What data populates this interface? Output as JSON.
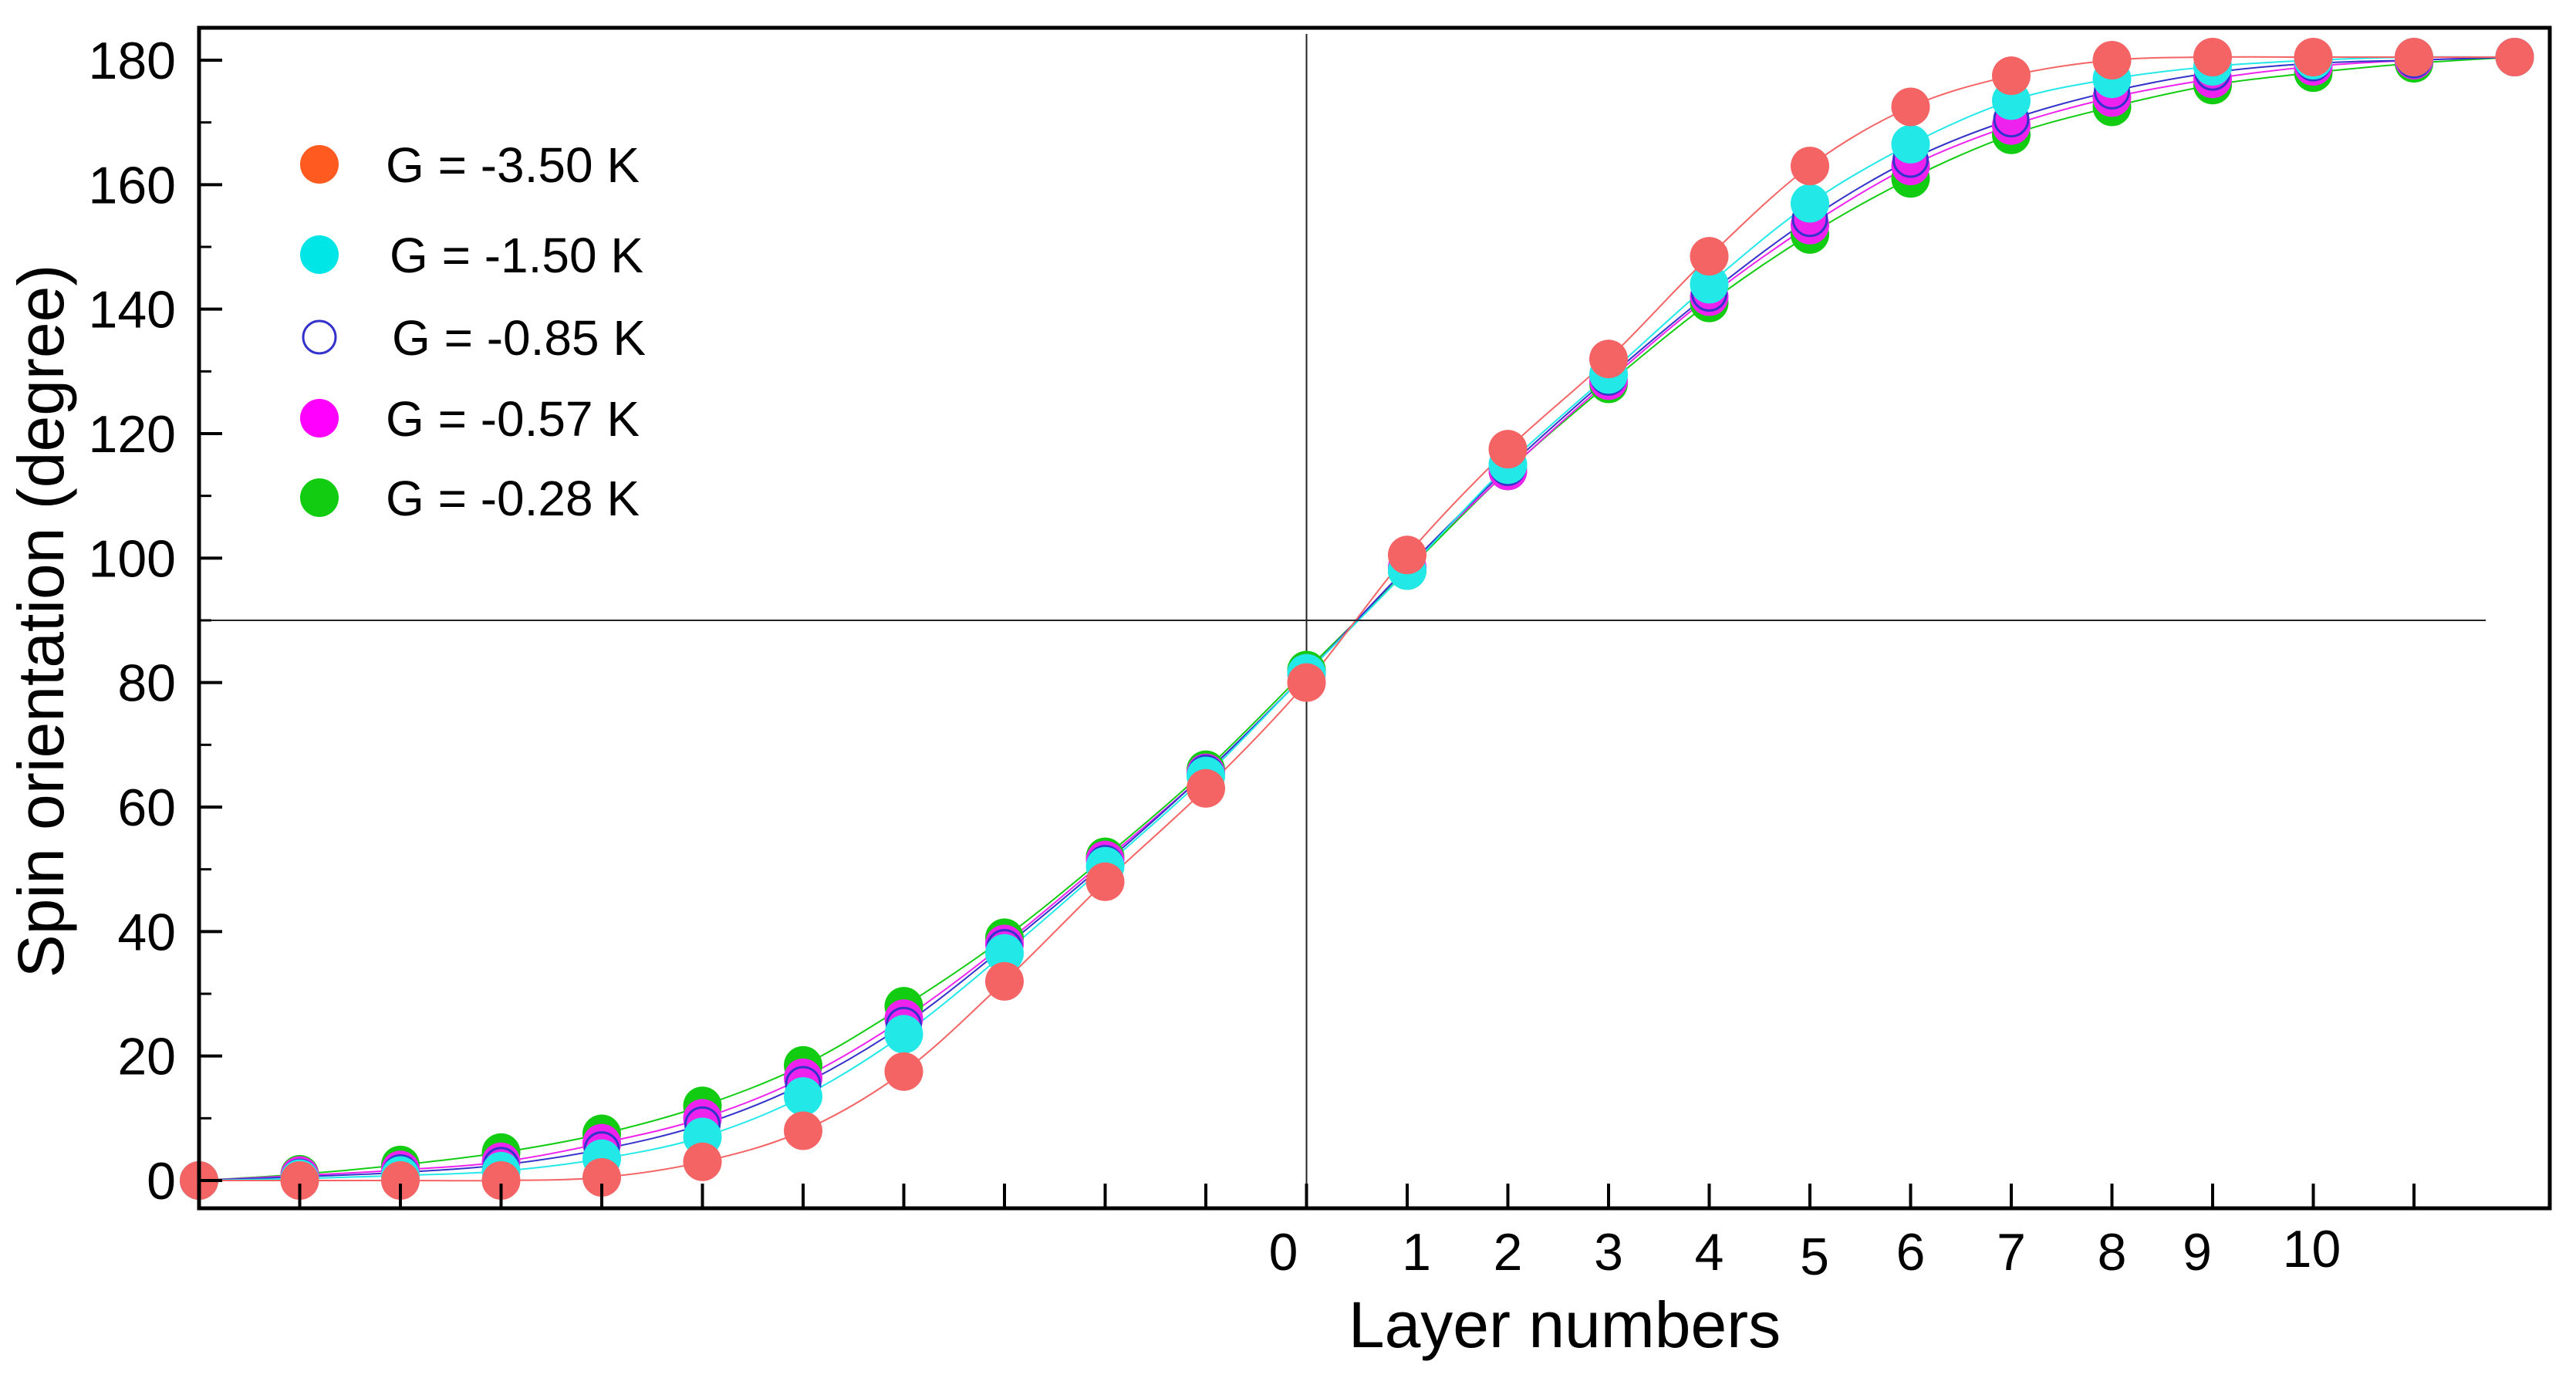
{
  "chart_data": {
    "type": "scatter",
    "title": "",
    "xlabel": "Layer numbers",
    "ylabel": "Spin orientation (degree)",
    "ylim": [
      0,
      180
    ],
    "grid": false,
    "legend_position": "top-left",
    "x": [
      -11,
      -10,
      -9,
      -8,
      -7,
      -6,
      -5,
      -4,
      -3,
      -2,
      -1,
      0,
      1,
      2,
      3,
      4,
      5,
      6,
      7,
      8,
      9,
      10,
      11,
      12
    ],
    "x_tick_labels": [
      "0",
      "1",
      "2",
      "3",
      "4",
      "5",
      "6",
      "7",
      "8",
      "9",
      "10"
    ],
    "y_tick_labels": [
      "0",
      "20",
      "40",
      "60",
      "80",
      "100",
      "120",
      "140",
      "160",
      "180"
    ],
    "series": [
      {
        "name": "G = -3.50 K",
        "marker": "filled",
        "color": "#ff5a1f",
        "draw_color": "#f46464",
        "values": [
          0,
          0,
          0,
          0,
          0.5,
          3,
          8,
          17.5,
          32,
          48,
          63,
          80,
          100.5,
          117.5,
          132,
          148.5,
          163,
          172.5,
          177.5,
          180,
          180.5,
          180.5,
          180.5,
          180.5
        ]
      },
      {
        "name": "G = -1.50 K",
        "marker": "filled",
        "color": "#00e6e6",
        "draw_color": "#22e8e8",
        "values": [
          0,
          0.3,
          0.8,
          1.5,
          3.5,
          7,
          13.5,
          23.5,
          36.5,
          50.5,
          65,
          81.5,
          98,
          115,
          129.5,
          144,
          157,
          166.5,
          173.5,
          177,
          179,
          180,
          180.5,
          180.5
        ]
      },
      {
        "name": "G = -0.85 K",
        "marker": "open",
        "color": "#3333cc",
        "draw_color": "#3333cc",
        "values": [
          0,
          0.6,
          1.3,
          2.5,
          5,
          9,
          15.5,
          25,
          37.5,
          51,
          65.5,
          81.5,
          98.5,
          114.5,
          129,
          142.5,
          154.5,
          164,
          170.5,
          175,
          178,
          179.5,
          180,
          180.5
        ]
      },
      {
        "name": "G = -0.57 K",
        "marker": "filled",
        "color": "#ff00ff",
        "draw_color": "#ee22ee",
        "values": [
          0,
          0.8,
          1.7,
          3,
          6,
          10,
          16.5,
          26,
          38,
          51.5,
          65.5,
          81.5,
          98.5,
          114,
          128.5,
          142,
          153.5,
          163,
          169.5,
          174,
          177,
          179,
          180,
          180.5
        ]
      },
      {
        "name": "G = -0.28 K",
        "marker": "filled",
        "color": "#11cc11",
        "draw_color": "#11cc11",
        "values": [
          0,
          1,
          2.5,
          4.5,
          7.5,
          12,
          18.5,
          28,
          39,
          52,
          66,
          82,
          98,
          114,
          128,
          141,
          152,
          161,
          168,
          172.5,
          176,
          178,
          179.5,
          180.5
        ]
      }
    ]
  }
}
